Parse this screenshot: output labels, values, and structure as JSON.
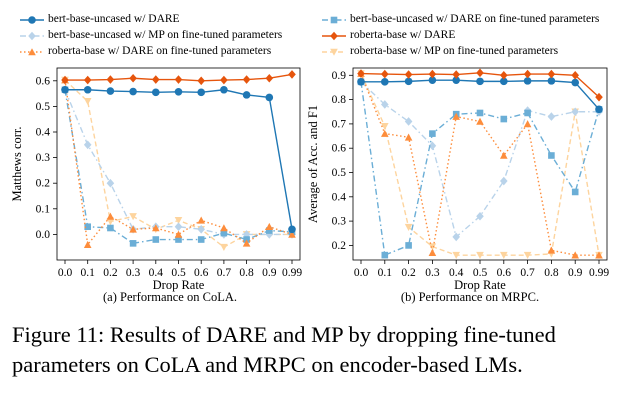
{
  "legend": [
    {
      "label": "bert-base-uncased w/ DARE",
      "series": "bert_dare"
    },
    {
      "label": "bert-base-uncased w/ DARE on fine-tuned parameters",
      "series": "bert_dare_ft"
    },
    {
      "label": "bert-base-uncased w/ MP on fine-tuned parameters",
      "series": "bert_mp_ft"
    },
    {
      "label": "roberta-base w/ DARE",
      "series": "roberta_dare"
    },
    {
      "label": "roberta-base w/ DARE on fine-tuned parameters",
      "series": "roberta_dare_ft"
    },
    {
      "label": "roberta-base w/ MP on fine-tuned parameters",
      "series": "roberta_mp_ft"
    }
  ],
  "styles": {
    "bert_dare": {
      "color": "#1f77b4",
      "marker": "circle",
      "dash": "solid"
    },
    "bert_dare_ft": {
      "color": "#6baed6",
      "marker": "square",
      "dash": "dashdot"
    },
    "bert_mp_ft": {
      "color": "#b9d3ea",
      "marker": "diamond",
      "dash": "dashdot"
    },
    "roberta_dare": {
      "color": "#e6550d",
      "marker": "diamond",
      "dash": "solid"
    },
    "roberta_dare_ft": {
      "color": "#fd8d3c",
      "marker": "triangle",
      "dash": "dotted"
    },
    "roberta_mp_ft": {
      "color": "#fdd49e",
      "marker": "triangle-down",
      "dash": "dashed"
    }
  },
  "caption": "Figure 11: Results of DARE and MP by dropping fine-tuned parameters on CoLA and MRPC on encoder-based LMs.",
  "chart_data": [
    {
      "type": "line",
      "subcaption": "(a) Performance on CoLA.",
      "xlabel": "Drop Rate",
      "ylabel": "Matthews corr.",
      "categories": [
        "0.0",
        "0.1",
        "0.2",
        "0.3",
        "0.4",
        "0.5",
        "0.6",
        "0.7",
        "0.8",
        "0.9",
        "0.99"
      ],
      "ylim": [
        -0.1,
        0.65
      ],
      "yticks": [
        "0.0",
        "0.1",
        "0.2",
        "0.3",
        "0.4",
        "0.5",
        "0.6"
      ],
      "ytick_values": [
        0.0,
        0.1,
        0.2,
        0.3,
        0.4,
        0.5,
        0.6
      ],
      "series": [
        {
          "key": "bert_dare",
          "values": [
            0.565,
            0.565,
            0.56,
            0.558,
            0.555,
            0.557,
            0.555,
            0.565,
            0.545,
            0.535,
            0.02
          ]
        },
        {
          "key": "bert_dare_ft",
          "values": [
            0.565,
            0.03,
            0.025,
            -0.035,
            -0.02,
            -0.02,
            -0.02,
            0.005,
            -0.02,
            0.015,
            0.01
          ]
        },
        {
          "key": "bert_mp_ft",
          "values": [
            0.565,
            0.35,
            0.2,
            0.02,
            0.03,
            0.03,
            0.02,
            0.0,
            0.0,
            0.0,
            0.0
          ]
        },
        {
          "key": "roberta_dare",
          "values": [
            0.603,
            0.603,
            0.605,
            0.61,
            0.605,
            0.605,
            0.6,
            0.603,
            0.605,
            0.61,
            0.625
          ]
        },
        {
          "key": "roberta_dare_ft",
          "values": [
            0.603,
            -0.04,
            0.07,
            0.02,
            0.025,
            0.0,
            0.055,
            0.025,
            -0.035,
            0.03,
            0.0
          ]
        },
        {
          "key": "roberta_mp_ft",
          "values": [
            0.603,
            0.52,
            0.05,
            0.07,
            0.02,
            0.055,
            0.02,
            -0.05,
            0.0,
            0.0,
            0.0
          ]
        }
      ]
    },
    {
      "type": "line",
      "subcaption": "(b) Performance on MRPC.",
      "xlabel": "Drop Rate",
      "ylabel": "Average of Acc. and F1",
      "categories": [
        "0.0",
        "0.1",
        "0.2",
        "0.3",
        "0.4",
        "0.5",
        "0.6",
        "0.7",
        "0.8",
        "0.9",
        "0.99"
      ],
      "ylim": [
        0.14,
        0.93
      ],
      "yticks": [
        "0.2",
        "0.3",
        "0.4",
        "0.5",
        "0.6",
        "0.7",
        "0.8",
        "0.9"
      ],
      "ytick_values": [
        0.2,
        0.3,
        0.4,
        0.5,
        0.6,
        0.7,
        0.8,
        0.9
      ],
      "series": [
        {
          "key": "bert_dare",
          "values": [
            0.873,
            0.873,
            0.875,
            0.88,
            0.88,
            0.875,
            0.875,
            0.877,
            0.877,
            0.87,
            0.76
          ]
        },
        {
          "key": "bert_dare_ft",
          "values": [
            0.873,
            0.16,
            0.2,
            0.66,
            0.74,
            0.745,
            0.72,
            0.745,
            0.57,
            0.42,
            0.76
          ]
        },
        {
          "key": "bert_mp_ft",
          "values": [
            0.873,
            0.78,
            0.71,
            0.61,
            0.235,
            0.32,
            0.465,
            0.755,
            0.73,
            0.75,
            0.75
          ]
        },
        {
          "key": "roberta_dare",
          "values": [
            0.907,
            0.905,
            0.903,
            0.905,
            0.903,
            0.91,
            0.9,
            0.905,
            0.905,
            0.9,
            0.81
          ]
        },
        {
          "key": "roberta_dare_ft",
          "values": [
            0.907,
            0.66,
            0.645,
            0.17,
            0.73,
            0.71,
            0.57,
            0.7,
            0.18,
            0.16,
            0.16
          ]
        },
        {
          "key": "roberta_mp_ft",
          "values": [
            0.907,
            0.69,
            0.275,
            0.195,
            0.16,
            0.16,
            0.16,
            0.16,
            0.165,
            0.75,
            0.16
          ]
        }
      ]
    }
  ]
}
